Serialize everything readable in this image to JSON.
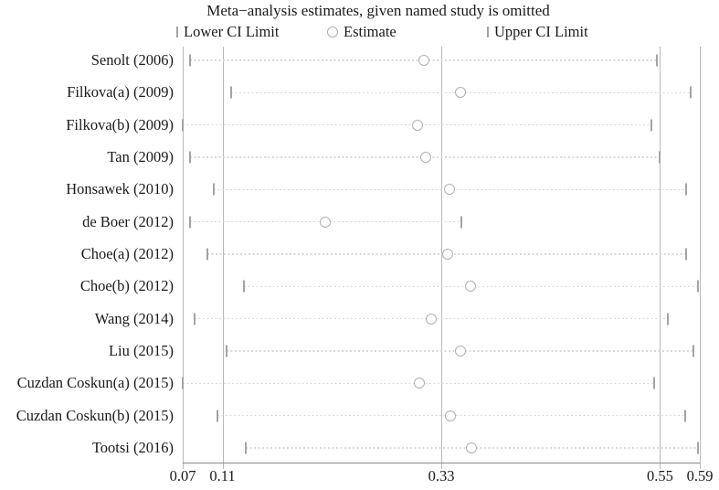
{
  "title": "Meta−analysis estimates, given named study is omitted",
  "legend": {
    "lower": "Lower CI Limit",
    "estimate": "Estimate",
    "upper": "Upper CI Limit"
  },
  "colors": {
    "marker": "#b0b0b0",
    "tick": "#a3a3a3",
    "refline": "#b9b9b9",
    "dash": "#d8d8d8",
    "axis": "#8c8c8c",
    "text": "#1a1a1a"
  },
  "chart_data": {
    "type": "scatter",
    "subtype": "leave-one-out-sensitivity-forest",
    "title": "Meta−analysis estimates, given named study is omitted",
    "studies": [
      "Senolt (2006)",
      "Filkova(a) (2009)",
      "Filkova(b) (2009)",
      "Tan (2009)",
      "Honsawek (2010)",
      "de Boer (2012)",
      "Choe(a) (2012)",
      "Choe(b) (2012)",
      "Wang (2014)",
      "Liu (2015)",
      "Cuzdan Coskun(a) (2015)",
      "Cuzdan Coskun(b) (2015)",
      "Tootsi (2016)"
    ],
    "series": [
      {
        "name": "Lower CI Limit",
        "values": [
          0.077,
          0.119,
          0.07,
          0.077,
          0.101,
          0.077,
          0.095,
          0.132,
          0.082,
          0.114,
          0.07,
          0.105,
          0.133
        ]
      },
      {
        "name": "Estimate",
        "values": [
          0.313,
          0.349,
          0.306,
          0.314,
          0.338,
          0.213,
          0.336,
          0.359,
          0.32,
          0.349,
          0.308,
          0.339,
          0.36
        ]
      },
      {
        "name": "Upper CI Limit",
        "values": [
          0.547,
          0.581,
          0.541,
          0.55,
          0.576,
          0.35,
          0.576,
          0.588,
          0.558,
          0.584,
          0.544,
          0.575,
          0.588
        ]
      }
    ],
    "x_range": [
      0.07,
      0.59
    ],
    "x_ticks": [
      0.07,
      0.11,
      0.33,
      0.55,
      0.59
    ],
    "x_tick_labels": [
      "0.07",
      "0.11",
      "0.33",
      "0.55",
      "0.59"
    ],
    "reference_lines": [
      0.11,
      0.33,
      0.55
    ],
    "grid": "horizontal-dotted-per-row",
    "legend_position": "top"
  }
}
